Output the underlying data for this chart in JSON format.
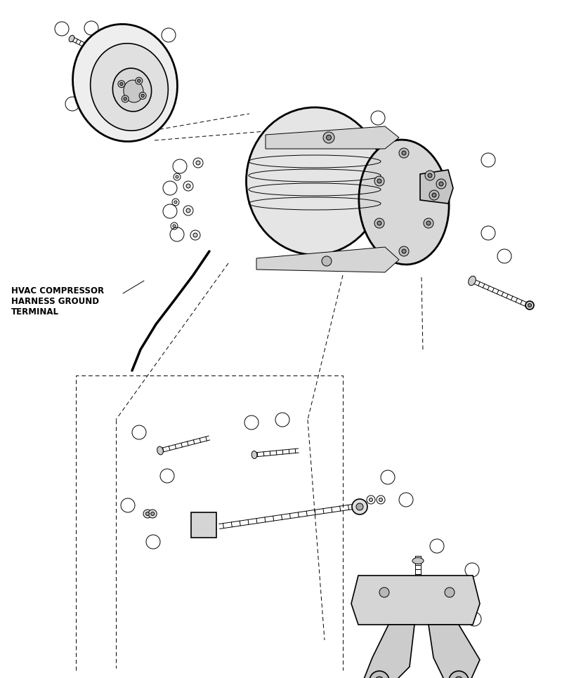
{
  "bg_color": "#ffffff",
  "line_color": "#000000",
  "fig_width": 8.0,
  "fig_height": 9.66,
  "label_text": "HVAC COMPRESSOR\nHARNESS GROUND\nTERMINAL",
  "label_fontsize": 8.5
}
